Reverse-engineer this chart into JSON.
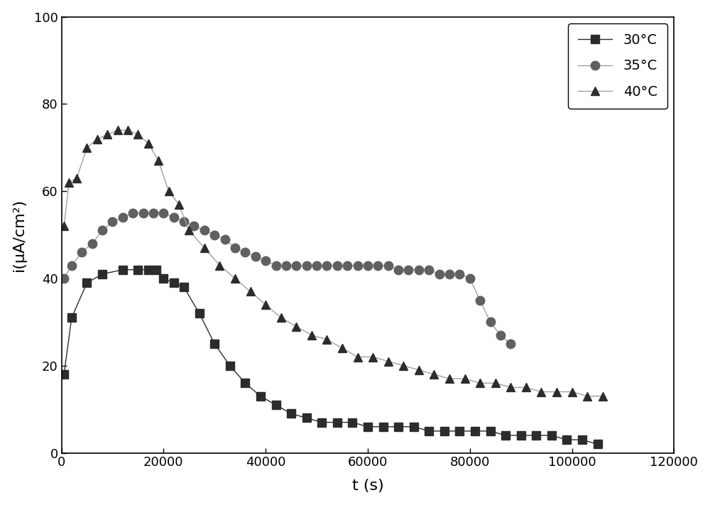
{
  "title": "",
  "xlabel": "t (s)",
  "ylabel": "i(μA/cm²)",
  "xlim": [
    0,
    120000
  ],
  "ylim": [
    0,
    100
  ],
  "xticks": [
    0,
    20000,
    40000,
    60000,
    80000,
    100000,
    120000
  ],
  "yticks": [
    0,
    20,
    40,
    60,
    80,
    100
  ],
  "series_30": {
    "t": [
      500,
      2000,
      5000,
      8000,
      12000,
      15000,
      17000,
      18500,
      20000,
      22000,
      24000,
      27000,
      30000,
      33000,
      36000,
      39000,
      42000,
      45000,
      48000,
      51000,
      54000,
      57000,
      60000,
      63000,
      66000,
      69000,
      72000,
      75000,
      78000,
      81000,
      84000,
      87000,
      90000,
      93000,
      96000,
      99000,
      102000,
      105000
    ],
    "i": [
      18,
      31,
      39,
      41,
      42,
      42,
      42,
      42,
      40,
      39,
      38,
      32,
      25,
      20,
      16,
      13,
      11,
      9,
      8,
      7,
      7,
      7,
      6,
      6,
      6,
      6,
      5,
      5,
      5,
      5,
      5,
      4,
      4,
      4,
      4,
      3,
      3,
      2
    ],
    "color": "#2c2c2c",
    "marker": "s",
    "markersize": 8,
    "linewidth": 1.0,
    "linestyle": "-",
    "label": "30°C"
  },
  "series_35": {
    "t": [
      500,
      2000,
      4000,
      6000,
      8000,
      10000,
      12000,
      14000,
      16000,
      18000,
      20000,
      22000,
      24000,
      26000,
      28000,
      30000,
      32000,
      34000,
      36000,
      38000,
      40000,
      42000,
      44000,
      46000,
      48000,
      50000,
      52000,
      54000,
      56000,
      58000,
      60000,
      62000,
      64000,
      66000,
      68000,
      70000,
      72000,
      74000,
      76000,
      78000,
      80000,
      82000,
      84000,
      86000,
      88000
    ],
    "i": [
      40,
      43,
      46,
      48,
      51,
      53,
      54,
      55,
      55,
      55,
      55,
      54,
      53,
      52,
      51,
      50,
      49,
      47,
      46,
      45,
      44,
      43,
      43,
      43,
      43,
      43,
      43,
      43,
      43,
      43,
      43,
      43,
      43,
      42,
      42,
      42,
      42,
      41,
      41,
      41,
      40,
      35,
      30,
      27,
      25
    ],
    "color": "#606060",
    "marker": "o",
    "markersize": 9,
    "linewidth": 1.0,
    "linestyle": "-",
    "label": "35°C"
  },
  "series_40": {
    "t": [
      500,
      1500,
      3000,
      5000,
      7000,
      9000,
      11000,
      13000,
      15000,
      17000,
      19000,
      21000,
      23000,
      25000,
      28000,
      31000,
      34000,
      37000,
      40000,
      43000,
      46000,
      49000,
      52000,
      55000,
      58000,
      61000,
      64000,
      67000,
      70000,
      73000,
      76000,
      79000,
      82000,
      85000,
      88000,
      91000,
      94000,
      97000,
      100000,
      103000,
      106000
    ],
    "i": [
      52,
      62,
      63,
      70,
      72,
      73,
      74,
      74,
      73,
      71,
      67,
      60,
      57,
      51,
      47,
      43,
      40,
      37,
      34,
      31,
      29,
      27,
      26,
      24,
      22,
      22,
      21,
      20,
      19,
      18,
      17,
      17,
      16,
      16,
      15,
      15,
      14,
      14,
      14,
      13,
      13
    ],
    "color": "#2c2c2c",
    "marker": "^",
    "markersize": 9,
    "linewidth": 1.0,
    "linestyle": "-",
    "label": "40°C"
  },
  "line_color_35": "#a0a0a0",
  "line_color_40": "#a0a0a0",
  "background_color": "#ffffff",
  "figure_size": [
    10.0,
    7.11
  ],
  "dpi": 100
}
